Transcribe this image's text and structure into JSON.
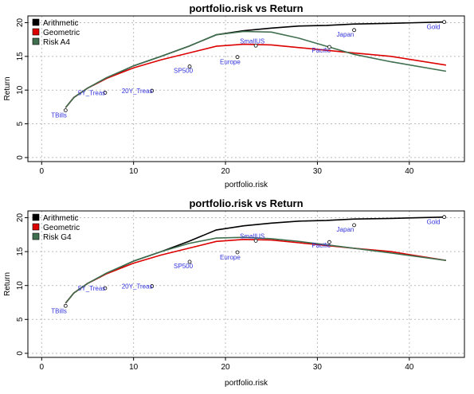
{
  "chart_data": [
    {
      "type": "line",
      "title": "portfolio.risk vs Return",
      "xlabel": "portfolio.risk",
      "ylabel": "Return",
      "xlim": [
        -1.5,
        46
      ],
      "ylim": [
        -0.6,
        21
      ],
      "xticks": [
        0,
        10,
        20,
        30,
        40
      ],
      "yticks": [
        0,
        5,
        10,
        15,
        20
      ],
      "grid": true,
      "legend": "top-left",
      "series": [
        {
          "name": "Arithmetic",
          "color": "#000000",
          "points": [
            [
              2.6,
              7.4
            ],
            [
              3.5,
              8.9
            ],
            [
              5,
              10.3
            ],
            [
              7,
              11.7
            ],
            [
              10,
              13.6
            ],
            [
              13,
              15
            ],
            [
              16,
              16.5
            ],
            [
              19,
              18.2
            ],
            [
              22,
              18.8
            ],
            [
              25,
              19.2
            ],
            [
              28,
              19.5
            ],
            [
              31,
              19.6
            ],
            [
              34,
              19.8
            ],
            [
              38,
              19.9
            ],
            [
              44,
              20.1
            ]
          ]
        },
        {
          "name": "Geometric",
          "color": "#dd0000",
          "points": [
            [
              2.6,
              7.4
            ],
            [
              3.5,
              8.9
            ],
            [
              5,
              10.3
            ],
            [
              7,
              11.7
            ],
            [
              10,
              13.3
            ],
            [
              13,
              14.5
            ],
            [
              16,
              15.5
            ],
            [
              19,
              16.5
            ],
            [
              22,
              16.8
            ],
            [
              25,
              16.7
            ],
            [
              28,
              16.3
            ],
            [
              31,
              15.9
            ],
            [
              34,
              15.5
            ],
            [
              38,
              15
            ],
            [
              44,
              13.7
            ]
          ]
        },
        {
          "name": "Risk A4",
          "color": "#3f6f4f",
          "points": [
            [
              2.6,
              7.4
            ],
            [
              3.5,
              8.9
            ],
            [
              5,
              10.3
            ],
            [
              7,
              11.8
            ],
            [
              10,
              13.6
            ],
            [
              13,
              15
            ],
            [
              16,
              16.5
            ],
            [
              19,
              18.2
            ],
            [
              22,
              18.7
            ],
            [
              25,
              18.6
            ],
            [
              28,
              17.7
            ],
            [
              31,
              16.5
            ],
            [
              34,
              15.3
            ],
            [
              38,
              14.2
            ],
            [
              44,
              12.8
            ]
          ]
        }
      ],
      "assets": [
        {
          "label": "TBills",
          "x": 2.6,
          "y": 7.0
        },
        {
          "label": "5Y_Treas",
          "x": 6.9,
          "y": 9.6
        },
        {
          "label": "20Y_Treas",
          "x": 12.0,
          "y": 9.9
        },
        {
          "label": "SP500",
          "x": 16.1,
          "y": 13.5
        },
        {
          "label": "SmallUS",
          "x": 23.3,
          "y": 16.6
        },
        {
          "label": "Europe",
          "x": 21.3,
          "y": 14.9
        },
        {
          "label": "Pacific",
          "x": 31.3,
          "y": 16.4
        },
        {
          "label": "Japan",
          "x": 34.0,
          "y": 18.9
        },
        {
          "label": "Gold",
          "x": 43.8,
          "y": 20.1
        }
      ]
    },
    {
      "type": "line",
      "title": "portfolio.risk vs Return",
      "xlabel": "portfolio.risk",
      "ylabel": "Return",
      "xlim": [
        -1.5,
        46
      ],
      "ylim": [
        -0.6,
        21
      ],
      "xticks": [
        0,
        10,
        20,
        30,
        40
      ],
      "yticks": [
        0,
        5,
        10,
        15,
        20
      ],
      "grid": true,
      "legend": "top-left",
      "series": [
        {
          "name": "Arithmetic",
          "color": "#000000",
          "points": [
            [
              2.6,
              7.4
            ],
            [
              3.5,
              8.9
            ],
            [
              5,
              10.3
            ],
            [
              7,
              11.7
            ],
            [
              10,
              13.6
            ],
            [
              13,
              15
            ],
            [
              16,
              16.5
            ],
            [
              19,
              18.2
            ],
            [
              22,
              18.8
            ],
            [
              25,
              19.2
            ],
            [
              28,
              19.5
            ],
            [
              31,
              19.6
            ],
            [
              34,
              19.8
            ],
            [
              38,
              19.9
            ],
            [
              44,
              20.1
            ]
          ]
        },
        {
          "name": "Geometric",
          "color": "#dd0000",
          "points": [
            [
              2.6,
              7.4
            ],
            [
              3.5,
              8.9
            ],
            [
              5,
              10.3
            ],
            [
              7,
              11.7
            ],
            [
              10,
              13.3
            ],
            [
              13,
              14.5
            ],
            [
              16,
              15.5
            ],
            [
              19,
              16.5
            ],
            [
              22,
              16.8
            ],
            [
              25,
              16.7
            ],
            [
              28,
              16.3
            ],
            [
              31,
              15.9
            ],
            [
              34,
              15.5
            ],
            [
              38,
              15
            ],
            [
              44,
              13.7
            ]
          ]
        },
        {
          "name": "Risk G4",
          "color": "#3f6f4f",
          "points": [
            [
              2.6,
              7.4
            ],
            [
              3.5,
              8.9
            ],
            [
              5,
              10.3
            ],
            [
              7,
              11.8
            ],
            [
              10,
              13.6
            ],
            [
              13,
              15
            ],
            [
              16,
              16.2
            ],
            [
              19,
              17
            ],
            [
              22,
              17.1
            ],
            [
              25,
              16.9
            ],
            [
              28,
              16.5
            ],
            [
              31,
              16
            ],
            [
              34,
              15.5
            ],
            [
              38,
              14.8
            ],
            [
              44,
              13.7
            ]
          ]
        }
      ],
      "assets": [
        {
          "label": "TBills",
          "x": 2.6,
          "y": 7.0
        },
        {
          "label": "5Y_Treas",
          "x": 6.9,
          "y": 9.6
        },
        {
          "label": "20Y_Treas",
          "x": 12.0,
          "y": 9.9
        },
        {
          "label": "SP500",
          "x": 16.1,
          "y": 13.5
        },
        {
          "label": "SmallUS",
          "x": 23.3,
          "y": 16.6
        },
        {
          "label": "Europe",
          "x": 21.3,
          "y": 14.9
        },
        {
          "label": "Pacific",
          "x": 31.3,
          "y": 16.4
        },
        {
          "label": "Japan",
          "x": 34.0,
          "y": 18.9
        },
        {
          "label": "Gold",
          "x": 43.8,
          "y": 20.1
        }
      ]
    }
  ]
}
